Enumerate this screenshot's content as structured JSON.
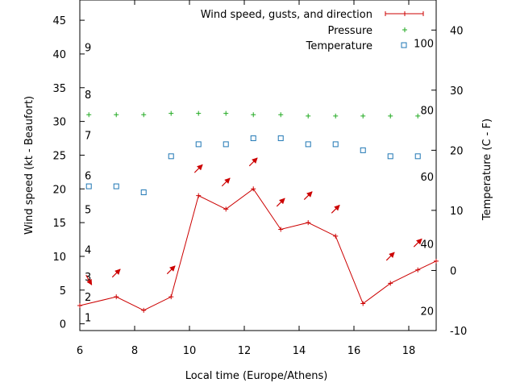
{
  "chart_data": {
    "type": "line",
    "xlabel": "Local time (Europe/Athens)",
    "ylabel_left": "Wind speed (kt - Beaufort)",
    "ylabel_right": "Temperature (C - F)",
    "xlim": [
      6,
      19
    ],
    "ylim_left": [
      -1,
      48
    ],
    "ylim_right": [
      -10,
      45
    ],
    "x_ticks": [
      6,
      8,
      10,
      12,
      14,
      16,
      18
    ],
    "y_ticks_left": [
      0,
      5,
      10,
      15,
      20,
      25,
      30,
      35,
      40,
      45
    ],
    "y_ticks_right": [
      -10,
      0,
      10,
      20,
      30,
      40
    ],
    "beaufort_labels": [
      {
        "label": "1",
        "kt": 1
      },
      {
        "label": "2",
        "kt": 4
      },
      {
        "label": "3",
        "kt": 7
      },
      {
        "label": "4",
        "kt": 11
      },
      {
        "label": "5",
        "kt": 17
      },
      {
        "label": "6",
        "kt": 22
      },
      {
        "label": "7",
        "kt": 28
      },
      {
        "label": "8",
        "kt": 34
      },
      {
        "label": "9",
        "kt": 41
      }
    ],
    "fahrenheit_labels": [
      {
        "label": "20",
        "c": -6.7
      },
      {
        "label": "40",
        "c": 4.4
      },
      {
        "label": "60",
        "c": 15.6
      },
      {
        "label": "80",
        "c": 26.7
      },
      {
        "label": "100",
        "c": 37.8
      }
    ],
    "legend": [
      {
        "name": "Wind speed, gusts, and direction",
        "color": "#cc0000"
      },
      {
        "name": "Pressure",
        "color": "#22aa22"
      },
      {
        "name": "Temperature",
        "color": "#1f77b4"
      }
    ],
    "series": [
      {
        "name": "Wind speed",
        "color": "#cc0000",
        "x": [
          6,
          7.33,
          8.33,
          9.33,
          10.33,
          11.33,
          12.33,
          13.33,
          14.33,
          15.33,
          16.33,
          17.33,
          18.33,
          19
        ],
        "y": [
          2.7,
          4,
          2,
          4,
          19,
          17,
          20,
          14,
          15,
          13,
          3,
          6,
          8,
          9.3
        ]
      },
      {
        "name": "Wind direction",
        "color": "#cc0000",
        "x": [
          6.33,
          7.33,
          9.33,
          10.33,
          11.33,
          12.33,
          13.33,
          14.33,
          15.33,
          17.33,
          18.33
        ],
        "gust": [
          6.5,
          7.5,
          8,
          23,
          21,
          24,
          18,
          19,
          17,
          10,
          12
        ],
        "dir_deg": [
          330,
          225,
          225,
          225,
          225,
          225,
          225,
          225,
          225,
          225,
          225
        ]
      },
      {
        "name": "Pressure",
        "color": "#22aa22",
        "x": [
          6.33,
          7.33,
          8.33,
          9.33,
          10.33,
          11.33,
          12.33,
          13.33,
          14.33,
          15.33,
          16.33,
          17.33,
          18.33
        ],
        "y": [
          31,
          31,
          31,
          31.2,
          31.2,
          31.2,
          31,
          31,
          30.8,
          30.8,
          30.8,
          30.8,
          30.8
        ]
      },
      {
        "name": "Temperature",
        "color": "#1f77b4",
        "x": [
          6.33,
          7.33,
          8.33,
          9.33,
          10.33,
          11.33,
          12.33,
          13.33,
          14.33,
          15.33,
          16.33,
          17.33,
          18.33
        ],
        "y": [
          14,
          14,
          13,
          19,
          21,
          21,
          22,
          22,
          21,
          21,
          20,
          19,
          19
        ]
      }
    ]
  }
}
